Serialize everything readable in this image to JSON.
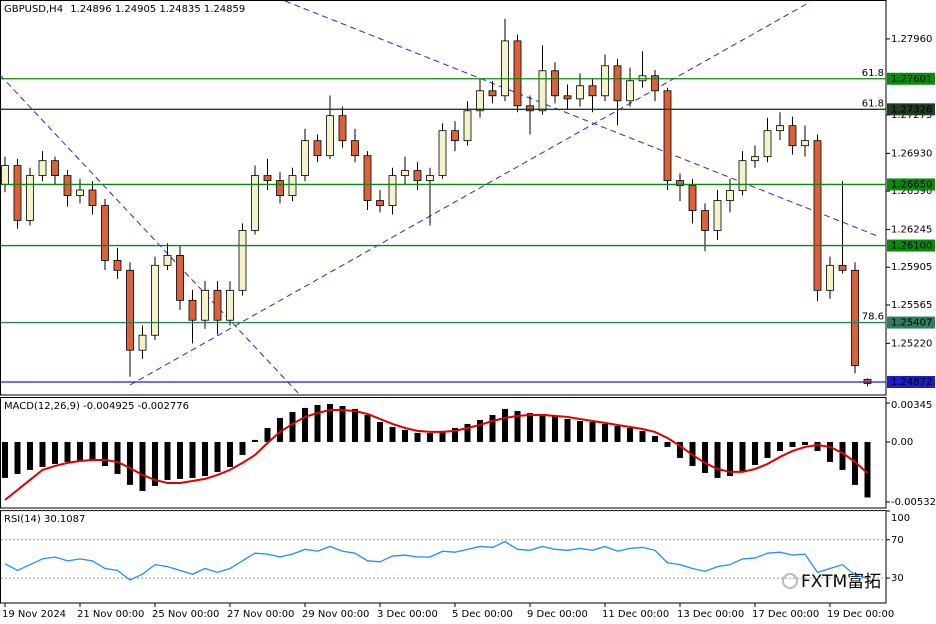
{
  "chart_data": [
    {
      "type": "candlestick",
      "title": "GBPUSD,H4",
      "categories": [
        "19 Nov 2024",
        null,
        null,
        null,
        null,
        null,
        "21 Nov 00:00",
        null,
        null,
        null,
        null,
        null,
        "25 Nov 00:00",
        null,
        null,
        null,
        null,
        null,
        "27 Nov 00:00",
        null,
        null,
        null,
        null,
        null,
        "29 Nov 00:00",
        null,
        null,
        null,
        null,
        null,
        "3 Dec 00:00",
        null,
        null,
        null,
        null,
        null,
        "5 Dec 00:00",
        null,
        null,
        null,
        null,
        null,
        "9 Dec 00:00",
        null,
        null,
        null,
        null,
        null,
        "11 Dec 00:00",
        null,
        null,
        null,
        null,
        null,
        "13 Dec 00:00",
        null,
        null,
        null,
        null,
        null,
        "17 Dec 00:00",
        null,
        null,
        null,
        null,
        null,
        "19 Dec 00:00",
        null,
        null,
        null
      ],
      "candles": [
        [
          1.2665,
          1.269,
          1.2658,
          1.2682
        ],
        [
          1.2682,
          1.2688,
          1.2625,
          1.26326
        ],
        [
          1.26326,
          1.268,
          1.2628,
          1.2673
        ],
        [
          1.2673,
          1.2695,
          1.2668,
          1.26864
        ],
        [
          1.26864,
          1.269,
          1.2665,
          1.2673
        ],
        [
          1.2673,
          1.2678,
          1.2645,
          1.2655
        ],
        [
          1.2655,
          1.267,
          1.2648,
          1.266
        ],
        [
          1.266,
          1.2668,
          1.2638,
          1.2646
        ],
        [
          1.2646,
          1.2652,
          1.2588,
          1.25966
        ],
        [
          1.25966,
          1.2608,
          1.258,
          1.25877
        ],
        [
          1.25877,
          1.2595,
          1.2492,
          1.25158
        ],
        [
          1.25158,
          1.2538,
          1.2508,
          1.25293
        ],
        [
          1.25293,
          1.26,
          1.2525,
          1.25922
        ],
        [
          1.25922,
          1.2612,
          1.2588,
          1.26011
        ],
        [
          1.26011,
          1.261,
          1.2552,
          1.25607
        ],
        [
          1.25607,
          1.257,
          1.2522,
          1.25428
        ],
        [
          1.25428,
          1.2578,
          1.2535,
          1.25697
        ],
        [
          1.25697,
          1.2578,
          1.253,
          1.25428
        ],
        [
          1.25428,
          1.2578,
          1.2538,
          1.25697
        ],
        [
          1.25697,
          1.263,
          1.2565,
          1.26236
        ],
        [
          1.26236,
          1.2682,
          1.262,
          1.2673
        ],
        [
          1.2673,
          1.2688,
          1.266,
          1.26685
        ],
        [
          1.26685,
          1.2676,
          1.2648,
          1.2655
        ],
        [
          1.2655,
          1.268,
          1.265,
          1.2673
        ],
        [
          1.2673,
          1.2715,
          1.2668,
          1.27044
        ],
        [
          1.27044,
          1.271,
          1.2685,
          1.26909
        ],
        [
          1.26909,
          1.2745,
          1.2688,
          1.27269
        ],
        [
          1.27269,
          1.2735,
          1.2698,
          1.27044
        ],
        [
          1.27044,
          1.2715,
          1.2685,
          1.26909
        ],
        [
          1.26909,
          1.2695,
          1.2642,
          1.26505
        ],
        [
          1.26505,
          1.266,
          1.264,
          1.2646
        ],
        [
          1.2646,
          1.268,
          1.2638,
          1.2673
        ],
        [
          1.2673,
          1.269,
          1.2665,
          1.26775
        ],
        [
          1.26775,
          1.2685,
          1.266,
          1.26685
        ],
        [
          1.26685,
          1.268,
          1.2628,
          1.2673
        ],
        [
          1.2673,
          1.272,
          1.267,
          1.27134
        ],
        [
          1.27134,
          1.2722,
          1.2695,
          1.27044
        ],
        [
          1.27044,
          1.274,
          1.27,
          1.27313
        ],
        [
          1.27313,
          1.276,
          1.2725,
          1.27493
        ],
        [
          1.27493,
          1.2758,
          1.2738,
          1.27448
        ],
        [
          1.27448,
          1.2814,
          1.274,
          1.27942
        ],
        [
          1.27942,
          1.28,
          1.273,
          1.27358
        ],
        [
          1.27358,
          1.2745,
          1.271,
          1.27313
        ],
        [
          1.27313,
          1.279,
          1.2728,
          1.27673
        ],
        [
          1.27673,
          1.2775,
          1.2738,
          1.27448
        ],
        [
          1.27448,
          1.2755,
          1.2732,
          1.2742
        ],
        [
          1.2742,
          1.2765,
          1.2735,
          1.27538
        ],
        [
          1.27538,
          1.276,
          1.273,
          1.27448
        ],
        [
          1.27448,
          1.2782,
          1.274,
          1.27718
        ],
        [
          1.27718,
          1.2778,
          1.2718,
          1.27403
        ],
        [
          1.27403,
          1.277,
          1.2735,
          1.27583
        ],
        [
          1.27583,
          1.2785,
          1.2752,
          1.27628
        ],
        [
          1.27628,
          1.2768,
          1.274,
          1.27493
        ],
        [
          1.27493,
          1.2752,
          1.266,
          1.26685
        ],
        [
          1.26685,
          1.2675,
          1.265,
          1.2664
        ],
        [
          1.2664,
          1.267,
          1.263,
          1.26415
        ],
        [
          1.26415,
          1.2648,
          1.2605,
          1.26236
        ],
        [
          1.26236,
          1.266,
          1.2615,
          1.26505
        ],
        [
          1.26505,
          1.267,
          1.264,
          1.26595
        ],
        [
          1.26595,
          1.2695,
          1.2655,
          1.26864
        ],
        [
          1.26864,
          1.27,
          1.268,
          1.269
        ],
        [
          1.269,
          1.2725,
          1.2685,
          1.27134
        ],
        [
          1.27134,
          1.273,
          1.2705,
          1.27179
        ],
        [
          1.27179,
          1.2726,
          1.2692,
          1.26999
        ],
        [
          1.26999,
          1.2718,
          1.269,
          1.27044
        ],
        [
          1.27044,
          1.271,
          1.256,
          1.25697
        ],
        [
          1.25697,
          1.26,
          1.2562,
          1.25922
        ],
        [
          1.25922,
          1.2668,
          1.2585,
          1.25877
        ],
        [
          1.25877,
          1.2595,
          1.2495,
          1.2502
        ],
        [
          1.24896,
          1.24905,
          1.24835,
          1.24859
        ]
      ],
      "bull_color": "#f4f2c8",
      "bear_color": "#d9623b",
      "ylim": [
        1.24755,
        1.28301
      ],
      "yticks": [
        {
          "value": 1.2796,
          "label": "1.27960"
        },
        1.27275,
        {
          "value": 1.2693,
          "label": "1.26930"
        },
        {
          "value": 1.2659,
          "label": "1.26590"
        },
        1.26245,
        1.25905,
        1.25565,
        {
          "value": 1.2522,
          "label": "1.25220"
        }
      ],
      "levels": [
        {
          "value": 1.27601,
          "color": "#0a8a0a",
          "fib": "61.8"
        },
        {
          "value": 1.27326,
          "color": "#1f3d1f",
          "fib": "61.8"
        },
        {
          "value": 1.2665,
          "label": "1.26650",
          "color": "#0a8a0a"
        },
        {
          "value": 1.261,
          "label": "1.26100",
          "color": "#0a8a0a"
        },
        {
          "value": 1.25407,
          "color": "#2f7f5f",
          "fib": "78.6"
        },
        {
          "value": 1.24872,
          "color": "#1c1cd0"
        }
      ]
    },
    {
      "type": "macd",
      "title": "MACD(12,26,9)",
      "series": [
        {
          "color": "#000000",
          "values": [
            -0.00319,
            -0.00284,
            -0.00248,
            -0.00222,
            -0.00195,
            -0.00177,
            -0.00169,
            -0.0016,
            -0.00213,
            -0.00284,
            -0.00381,
            -0.00435,
            -0.0039,
            -0.00337,
            -0.00328,
            -0.00319,
            -0.00302,
            -0.00266,
            -0.00222,
            -0.00115,
            0.00018,
            0.00124,
            0.00213,
            0.00266,
            0.00302,
            0.00328,
            0.00337,
            0.00319,
            0.00293,
            0.00239,
            0.00177,
            0.00133,
            0.00106,
            0.0008,
            0.0008,
            0.00098,
            0.00124,
            0.0016,
            0.00195,
            0.00239,
            0.00293,
            0.00275,
            0.00257,
            0.00248,
            0.00231,
            0.00204,
            0.00186,
            0.00177,
            0.0016,
            0.00142,
            0.00124,
            0.00098,
            0.00053,
            -0.00044,
            -0.00142,
            -0.00213,
            -0.00275,
            -0.00319,
            -0.00302,
            -0.00257,
            -0.00204,
            -0.00142,
            -0.0008,
            -0.00044,
            -0.00027,
            -0.0008,
            -0.00177,
            -0.00248,
            -0.00381,
            -0.004925
          ]
        },
        {
          "color": "#e00000",
          "values": [
            -0.00514,
            -0.00426,
            -0.00337,
            -0.00248,
            -0.00213,
            -0.00186,
            -0.00169,
            -0.0016,
            -0.0016,
            -0.00177,
            -0.00231,
            -0.00293,
            -0.00337,
            -0.00364,
            -0.00364,
            -0.00346,
            -0.00328,
            -0.00293,
            -0.00248,
            -0.00186,
            -0.00115,
            -9e-05,
            0.00089,
            0.0016,
            0.00222,
            0.00257,
            0.00284,
            0.00284,
            0.00275,
            0.00248,
            0.00204,
            0.0016,
            0.00124,
            0.00098,
            0.00089,
            0.00089,
            0.00098,
            0.00124,
            0.00151,
            0.00186,
            0.00213,
            0.00231,
            0.00239,
            0.00239,
            0.00231,
            0.00222,
            0.00204,
            0.00186,
            0.00169,
            0.00151,
            0.00133,
            0.00115,
            0.00089,
            0.00035,
            -0.00035,
            -0.00115,
            -0.00186,
            -0.0024,
            -0.00266,
            -0.00266,
            -0.0024,
            -0.00195,
            -0.00133,
            -0.0008,
            -0.00044,
            -0.00027,
            -0.00044,
            -0.00098,
            -0.00177,
            -0.002776
          ]
        }
      ],
      "ylim": [
        -0.00586,
        0.0039
      ],
      "yticks": [
        0.00345,
        {
          "value": 0,
          "label": "0.00"
        },
        -0.005324
      ]
    },
    {
      "type": "line",
      "title": "RSI(14)",
      "color": "#1e90ff",
      "values": [
        45,
        38,
        44,
        50,
        52,
        48,
        50,
        48,
        40,
        38,
        28,
        34,
        44,
        42,
        38,
        34,
        40,
        36,
        40,
        48,
        56,
        55,
        52,
        55,
        60,
        58,
        63,
        58,
        56,
        48,
        47,
        53,
        54,
        52,
        52,
        58,
        57,
        60,
        63,
        62,
        68,
        60,
        59,
        63,
        60,
        59,
        61,
        59,
        63,
        58,
        61,
        62,
        59,
        46,
        44,
        40,
        37,
        42,
        44,
        50,
        51,
        56,
        57,
        54,
        55,
        36,
        40,
        44,
        33,
        30.1087
      ],
      "ylim": [
        4,
        100
      ],
      "yticks": [
        100,
        70,
        30
      ],
      "grid": true,
      "annotations": [
        "FXTM富拓"
      ]
    }
  ]
}
